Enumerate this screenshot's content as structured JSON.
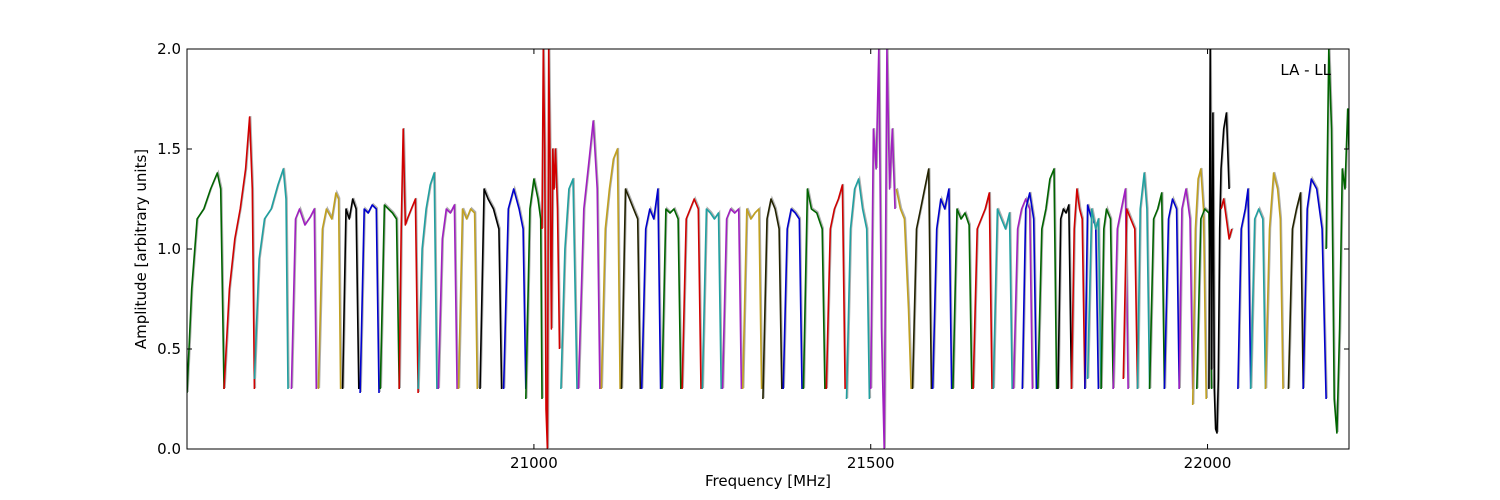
{
  "chart_data": {
    "type": "line",
    "title": "",
    "annotation": "LA - LL",
    "xlabel": "Frequency [MHz]",
    "ylabel": "Amplitude [arbitrary units]",
    "xlim": [
      20485,
      22210
    ],
    "ylim": [
      0.0,
      2.0
    ],
    "xticks": [
      21000,
      21500,
      22000
    ],
    "xtick_labels": [
      "21000",
      "21500",
      "22000"
    ],
    "yticks": [
      0.0,
      0.5,
      1.0,
      1.5,
      2.0
    ],
    "ytick_labels": [
      "0.0",
      "0.5",
      "1.0",
      "1.5",
      "2.0"
    ],
    "grid": false,
    "legend": "none",
    "colors": [
      "#006400",
      "#d00000",
      "#20a0a0",
      "#a020c0",
      "#c0a020",
      "#000000",
      "#0000cc",
      "#222200"
    ],
    "shadow_color": "#b0b0b0",
    "series": [
      {
        "color_index": 0,
        "x": [
          20485,
          20492,
          20500,
          20510,
          20520,
          20530,
          20535,
          20540
        ],
        "y": [
          0.28,
          0.8,
          1.15,
          1.2,
          1.3,
          1.38,
          1.3,
          0.3
        ]
      },
      {
        "color_index": 1,
        "x": [
          20540,
          20548,
          20556,
          20564,
          20572,
          20578,
          20582,
          20585
        ],
        "y": [
          0.3,
          0.8,
          1.05,
          1.2,
          1.4,
          1.66,
          1.3,
          0.3
        ]
      },
      {
        "color_index": 2,
        "x": [
          20585,
          20592,
          20600,
          20610,
          20620,
          20628,
          20632,
          20635
        ],
        "y": [
          0.35,
          0.95,
          1.15,
          1.2,
          1.32,
          1.4,
          1.25,
          0.3
        ]
      },
      {
        "color_index": 3,
        "x": [
          20640,
          20646,
          20652,
          20660,
          20668,
          20674,
          20677
        ],
        "y": [
          0.3,
          1.15,
          1.2,
          1.12,
          1.16,
          1.2,
          0.3
        ]
      },
      {
        "color_index": 4,
        "x": [
          20680,
          20686,
          20692,
          20700,
          20706,
          20710,
          20713
        ],
        "y": [
          0.3,
          1.1,
          1.2,
          1.15,
          1.28,
          1.25,
          0.3
        ]
      },
      {
        "color_index": 5,
        "x": [
          20716,
          20721,
          20726,
          20731,
          20736,
          20740
        ],
        "y": [
          0.3,
          1.2,
          1.15,
          1.25,
          1.2,
          0.3
        ]
      },
      {
        "color_index": 6,
        "x": [
          20742,
          20748,
          20754,
          20760,
          20766,
          20770
        ],
        "y": [
          0.28,
          1.2,
          1.18,
          1.22,
          1.2,
          0.28
        ]
      },
      {
        "color_index": 0,
        "x": [
          20772,
          20778,
          20784,
          20790,
          20796,
          20800
        ],
        "y": [
          0.3,
          1.22,
          1.2,
          1.18,
          1.15,
          0.3
        ]
      },
      {
        "color_index": 1,
        "x": [
          20800,
          20803,
          20806,
          20809,
          20812,
          20818,
          20824,
          20828
        ],
        "y": [
          0.3,
          1.1,
          1.6,
          1.12,
          1.15,
          1.2,
          1.25,
          0.28
        ]
      },
      {
        "color_index": 2,
        "x": [
          20828,
          20834,
          20840,
          20846,
          20852,
          20856
        ],
        "y": [
          0.3,
          1.0,
          1.2,
          1.32,
          1.38,
          0.3
        ]
      },
      {
        "color_index": 3,
        "x": [
          20858,
          20864,
          20870,
          20876,
          20882,
          20886
        ],
        "y": [
          0.3,
          1.05,
          1.2,
          1.18,
          1.22,
          0.3
        ]
      },
      {
        "color_index": 4,
        "x": [
          20888,
          20894,
          20900,
          20906,
          20912,
          20916
        ],
        "y": [
          0.3,
          1.2,
          1.15,
          1.2,
          1.18,
          0.3
        ]
      },
      {
        "color_index": 5,
        "x": [
          20920,
          20926,
          20932,
          20940,
          20948,
          20952
        ],
        "y": [
          0.3,
          1.3,
          1.25,
          1.2,
          1.1,
          0.3
        ]
      },
      {
        "color_index": 6,
        "x": [
          20955,
          20962,
          20970,
          20978,
          20984,
          20988
        ],
        "y": [
          0.3,
          1.2,
          1.3,
          1.2,
          1.1,
          0.3
        ]
      },
      {
        "color_index": 0,
        "x": [
          20988,
          20994,
          21000,
          21006,
          21010,
          21012
        ],
        "y": [
          0.25,
          1.2,
          1.35,
          1.25,
          1.15,
          0.25
        ]
      },
      {
        "color_index": 1,
        "x": [
          21012,
          21014,
          21016,
          21018,
          21020,
          21022,
          21024,
          21026,
          21028,
          21030,
          21032,
          21035,
          21038
        ],
        "y": [
          1.1,
          2.0,
          1.5,
          0.2,
          0.0,
          2.0,
          1.4,
          0.6,
          1.5,
          1.3,
          1.5,
          1.2,
          0.5
        ]
      },
      {
        "color_index": 2,
        "x": [
          21040,
          21046,
          21052,
          21058,
          21064
        ],
        "y": [
          0.3,
          1.0,
          1.3,
          1.35,
          0.3
        ]
      },
      {
        "color_index": 3,
        "x": [
          21066,
          21074,
          21082,
          21088,
          21094,
          21098
        ],
        "y": [
          0.3,
          1.2,
          1.45,
          1.64,
          1.3,
          0.3
        ]
      },
      {
        "color_index": 4,
        "x": [
          21100,
          21106,
          21112,
          21118,
          21124,
          21128
        ],
        "y": [
          0.3,
          1.1,
          1.3,
          1.45,
          1.5,
          0.3
        ]
      },
      {
        "color_index": 7,
        "x": [
          21130,
          21136,
          21142,
          21148,
          21154,
          21158
        ],
        "y": [
          0.3,
          1.3,
          1.25,
          1.2,
          1.15,
          0.3
        ]
      },
      {
        "color_index": 6,
        "x": [
          21160,
          21166,
          21172,
          21178,
          21184,
          21188
        ],
        "y": [
          0.3,
          1.1,
          1.2,
          1.15,
          1.3,
          0.3
        ]
      },
      {
        "color_index": 0,
        "x": [
          21190,
          21196,
          21202,
          21208,
          21214,
          21218
        ],
        "y": [
          0.3,
          1.2,
          1.18,
          1.2,
          1.15,
          0.3
        ]
      },
      {
        "color_index": 1,
        "x": [
          21220,
          21226,
          21232,
          21238,
          21244,
          21248
        ],
        "y": [
          0.3,
          1.15,
          1.2,
          1.25,
          1.2,
          0.3
        ]
      },
      {
        "color_index": 2,
        "x": [
          21250,
          21256,
          21262,
          21268,
          21274,
          21278
        ],
        "y": [
          0.3,
          1.2,
          1.18,
          1.15,
          1.18,
          0.3
        ]
      },
      {
        "color_index": 3,
        "x": [
          21280,
          21286,
          21292,
          21298,
          21304,
          21308
        ],
        "y": [
          0.3,
          1.15,
          1.2,
          1.18,
          1.2,
          0.3
        ]
      },
      {
        "color_index": 4,
        "x": [
          21310,
          21316,
          21322,
          21328,
          21334,
          21338
        ],
        "y": [
          0.3,
          1.2,
          1.15,
          1.18,
          1.2,
          0.3
        ]
      },
      {
        "color_index": 7,
        "x": [
          21340,
          21346,
          21352,
          21358,
          21364,
          21368
        ],
        "y": [
          0.25,
          1.15,
          1.25,
          1.2,
          1.1,
          0.3
        ]
      },
      {
        "color_index": 6,
        "x": [
          21370,
          21376,
          21382,
          21388,
          21394,
          21398
        ],
        "y": [
          0.3,
          1.1,
          1.2,
          1.18,
          1.15,
          0.3
        ]
      },
      {
        "color_index": 0,
        "x": [
          21400,
          21406,
          21412,
          21420,
          21428,
          21432
        ],
        "y": [
          0.3,
          1.3,
          1.2,
          1.18,
          1.1,
          0.3
        ]
      },
      {
        "color_index": 1,
        "x": [
          21434,
          21440,
          21446,
          21452,
          21458,
          21462
        ],
        "y": [
          0.3,
          1.1,
          1.2,
          1.25,
          1.32,
          0.3
        ]
      },
      {
        "color_index": 2,
        "x": [
          21464,
          21470,
          21476,
          21482,
          21488,
          21494,
          21498
        ],
        "y": [
          0.25,
          1.1,
          1.3,
          1.35,
          1.2,
          1.1,
          0.25
        ]
      },
      {
        "color_index": 3,
        "x": [
          21500,
          21504,
          21508,
          21512,
          21516,
          21520,
          21524,
          21528,
          21532,
          21536
        ],
        "y": [
          0.3,
          1.6,
          1.4,
          2.0,
          0.6,
          0.0,
          2.0,
          1.3,
          1.6,
          1.2
        ]
      },
      {
        "color_index": 4,
        "x": [
          21538,
          21544,
          21550,
          21556,
          21560
        ],
        "y": [
          1.3,
          1.2,
          1.15,
          0.7,
          0.3
        ]
      },
      {
        "color_index": 7,
        "x": [
          21562,
          21568,
          21574,
          21580,
          21586,
          21590
        ],
        "y": [
          0.3,
          1.1,
          1.2,
          1.3,
          1.4,
          0.3
        ]
      },
      {
        "color_index": 6,
        "x": [
          21592,
          21598,
          21604,
          21610,
          21616,
          21620
        ],
        "y": [
          0.3,
          1.1,
          1.25,
          1.2,
          1.3,
          0.3
        ]
      },
      {
        "color_index": 0,
        "x": [
          21622,
          21628,
          21634,
          21640,
          21646,
          21650
        ],
        "y": [
          0.3,
          1.2,
          1.15,
          1.18,
          1.12,
          0.3
        ]
      },
      {
        "color_index": 1,
        "x": [
          21652,
          21658,
          21664,
          21670,
          21676,
          21680
        ],
        "y": [
          0.3,
          1.1,
          1.15,
          1.2,
          1.28,
          0.3
        ]
      },
      {
        "color_index": 2,
        "x": [
          21682,
          21688,
          21694,
          21700,
          21706,
          21710
        ],
        "y": [
          0.3,
          1.2,
          1.15,
          1.1,
          1.18,
          0.3
        ]
      },
      {
        "color_index": 3,
        "x": [
          21712,
          21718,
          21724,
          21730,
          21736,
          21740
        ],
        "y": [
          0.3,
          1.1,
          1.2,
          1.25,
          1.2,
          0.3
        ]
      },
      {
        "color_index": 6,
        "x": [
          21725,
          21730,
          21736,
          21742,
          21746
        ],
        "y": [
          0.3,
          1.2,
          1.28,
          1.15,
          0.3
        ]
      },
      {
        "color_index": 0,
        "x": [
          21748,
          21754,
          21760,
          21766,
          21772,
          21776
        ],
        "y": [
          0.3,
          1.1,
          1.2,
          1.35,
          1.4,
          0.3
        ]
      },
      {
        "color_index": 5,
        "x": [
          21778,
          21782,
          21786,
          21790,
          21794,
          21798
        ],
        "y": [
          0.3,
          1.15,
          1.2,
          1.18,
          1.22,
          0.3
        ]
      },
      {
        "color_index": 1,
        "x": [
          21798,
          21802,
          21806,
          21810,
          21814,
          21818
        ],
        "y": [
          0.3,
          1.1,
          1.3,
          1.2,
          1.15,
          0.3
        ]
      },
      {
        "color_index": 6,
        "x": [
          21818,
          21822,
          21828,
          21834,
          21838
        ],
        "y": [
          0.3,
          1.22,
          1.15,
          1.12,
          0.3
        ]
      },
      {
        "color_index": 2,
        "x": [
          21822,
          21828,
          21834,
          21838,
          21842
        ],
        "y": [
          0.35,
          1.2,
          1.1,
          1.15,
          0.3
        ]
      },
      {
        "color_index": 0,
        "x": [
          21842,
          21846,
          21850,
          21856,
          21860
        ],
        "y": [
          0.3,
          1.1,
          1.2,
          1.15,
          0.3
        ]
      },
      {
        "color_index": 3,
        "x": [
          21860,
          21866,
          21872,
          21878,
          21882
        ],
        "y": [
          0.3,
          1.1,
          1.2,
          1.3,
          0.3
        ]
      },
      {
        "color_index": 1,
        "x": [
          21875,
          21880,
          21886,
          21892,
          21896
        ],
        "y": [
          0.35,
          1.2,
          1.15,
          1.1,
          0.3
        ]
      },
      {
        "color_index": 2,
        "x": [
          21896,
          21900,
          21906,
          21910,
          21914
        ],
        "y": [
          0.3,
          1.2,
          1.38,
          1.2,
          0.3
        ]
      },
      {
        "color_index": 0,
        "x": [
          21914,
          21920,
          21926,
          21932,
          21936
        ],
        "y": [
          0.3,
          1.15,
          1.2,
          1.28,
          0.3
        ]
      },
      {
        "color_index": 6,
        "x": [
          21936,
          21942,
          21948,
          21954,
          21958
        ],
        "y": [
          0.3,
          1.15,
          1.25,
          1.2,
          0.3
        ]
      },
      {
        "color_index": 3,
        "x": [
          21958,
          21962,
          21968,
          21974,
          21978
        ],
        "y": [
          0.3,
          1.2,
          1.3,
          1.15,
          0.3
        ]
      },
      {
        "color_index": 4,
        "x": [
          21978,
          21982,
          21986,
          21990,
          21994,
          21998
        ],
        "y": [
          0.22,
          1.1,
          1.35,
          1.4,
          1.2,
          0.25
        ]
      },
      {
        "color_index": 0,
        "x": [
          21984,
          21990,
          21996,
          22002,
          22006
        ],
        "y": [
          0.3,
          1.15,
          1.2,
          1.18,
          0.3
        ]
      },
      {
        "color_index": 5,
        "x": [
          22002,
          22004,
          22006,
          22008,
          22010,
          22012,
          22014,
          22016,
          22018,
          22020,
          22024,
          22028,
          22032
        ],
        "y": [
          0.3,
          2.0,
          0.4,
          1.68,
          0.3,
          0.1,
          0.08,
          0.35,
          1.1,
          1.4,
          1.6,
          1.68,
          1.3
        ]
      },
      {
        "color_index": 1,
        "x": [
          22020,
          22024,
          22028,
          22032,
          22036
        ],
        "y": [
          1.2,
          1.25,
          1.15,
          1.05,
          1.1
        ]
      },
      {
        "color_index": 6,
        "x": [
          22045,
          22050,
          22056,
          22060,
          22064
        ],
        "y": [
          0.3,
          1.1,
          1.2,
          1.3,
          0.3
        ]
      },
      {
        "color_index": 2,
        "x": [
          22064,
          22070,
          22076,
          22082,
          22086
        ],
        "y": [
          0.3,
          1.15,
          1.2,
          1.15,
          0.3
        ]
      },
      {
        "color_index": 4,
        "x": [
          22086,
          22092,
          22098,
          22104,
          22108,
          22112
        ],
        "y": [
          0.3,
          1.1,
          1.38,
          1.3,
          1.15,
          0.3
        ]
      },
      {
        "color_index": 7,
        "x": [
          22120,
          22126,
          22132,
          22138,
          22142
        ],
        "y": [
          0.3,
          1.1,
          1.2,
          1.28,
          0.3
        ]
      },
      {
        "color_index": 6,
        "x": [
          22142,
          22148,
          22154,
          22162,
          22170,
          22176
        ],
        "y": [
          0.3,
          1.2,
          1.35,
          1.3,
          1.1,
          0.25
        ]
      },
      {
        "color_index": 0,
        "x": [
          22176,
          22180,
          22184,
          22188,
          22192,
          22196,
          22200,
          22204,
          22208,
          22210
        ],
        "y": [
          1.0,
          2.0,
          1.6,
          0.25,
          0.08,
          0.6,
          1.4,
          1.3,
          1.7,
          1.5
        ]
      }
    ]
  }
}
